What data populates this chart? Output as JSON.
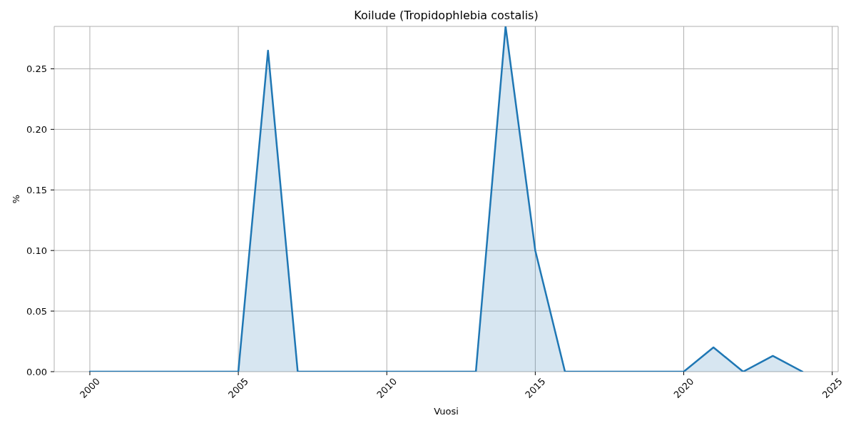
{
  "chart_data": {
    "type": "area",
    "title": "Koilude (Tropidophlebia costalis)",
    "xlabel": "Vuosi",
    "ylabel": "%",
    "x": [
      2000,
      2001,
      2002,
      2003,
      2004,
      2005,
      2006,
      2007,
      2008,
      2009,
      2010,
      2011,
      2012,
      2013,
      2014,
      2015,
      2016,
      2017,
      2018,
      2019,
      2020,
      2021,
      2022,
      2023,
      2024
    ],
    "values": [
      0,
      0,
      0,
      0,
      0,
      0,
      0.265,
      0,
      0,
      0,
      0,
      0,
      0,
      0,
      0.285,
      0.1,
      0,
      0,
      0,
      0,
      0,
      0.02,
      0,
      0.013,
      0
    ],
    "color": "#1f77b4",
    "xlim": [
      1998.8,
      2025.2
    ],
    "xticks": [
      2000,
      2005,
      2010,
      2015,
      2020,
      2025
    ],
    "ylim": [
      0,
      0.285
    ],
    "yticks": [
      {
        "value": 0,
        "label": "0.00"
      },
      {
        "value": 0.05,
        "label": "0.05"
      },
      {
        "value": 0.1,
        "label": "0.10"
      },
      {
        "value": 0.15,
        "label": "0.15"
      },
      {
        "value": 0.2,
        "label": "0.20"
      },
      {
        "value": 0.25,
        "label": "0.25"
      }
    ],
    "grid": true
  }
}
